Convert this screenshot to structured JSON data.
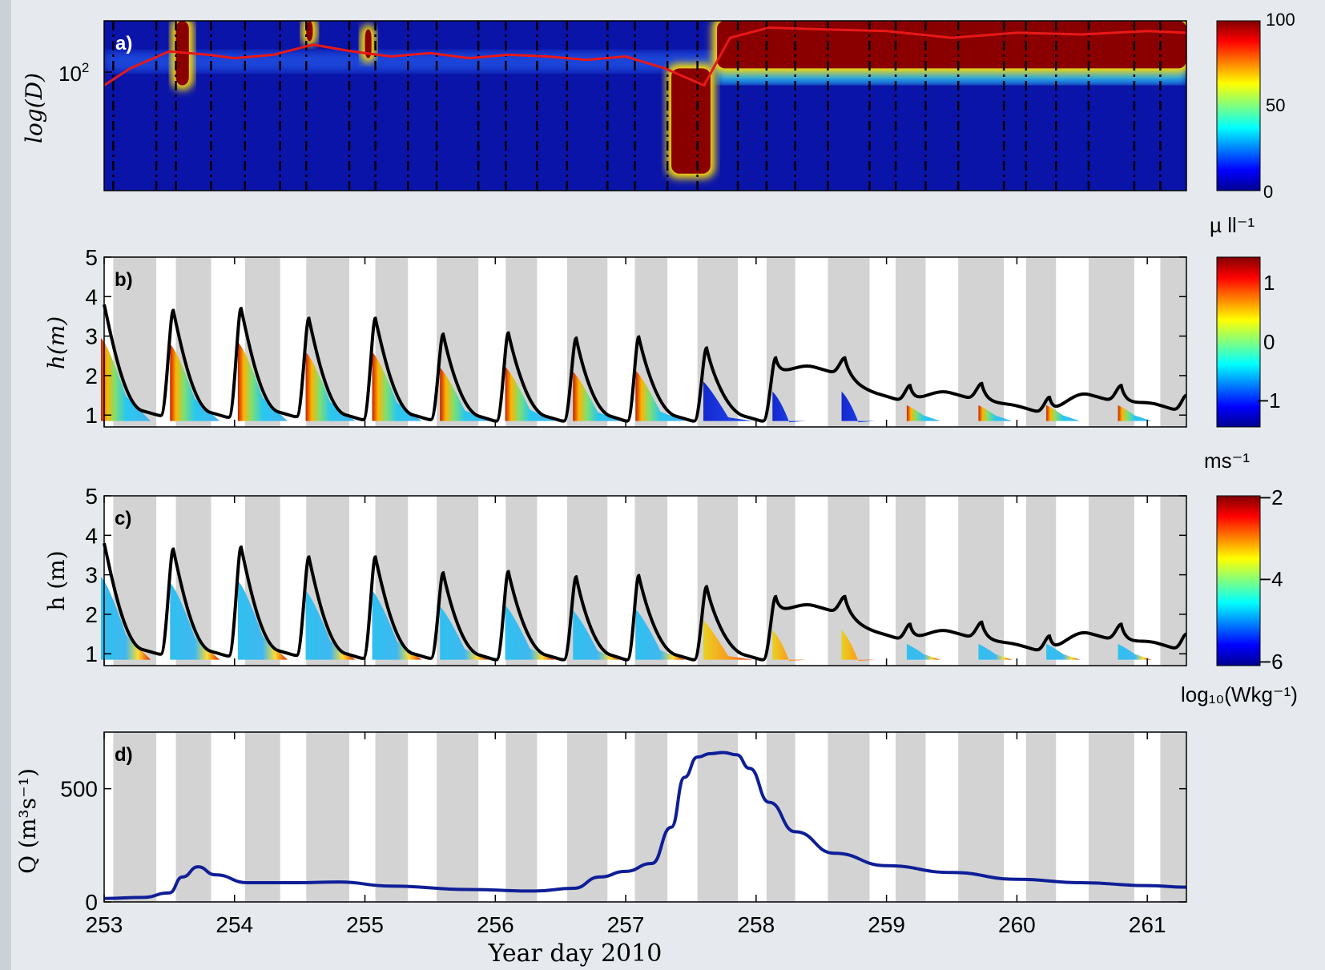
{
  "chart_data": [
    {
      "panel": "a)",
      "type": "heatmap",
      "ylabel": "log(D)",
      "ytick_labels": [
        "10^2"
      ],
      "ylim_note": "log scale",
      "colorbar": {
        "ticks": [
          "0",
          "50",
          "100"
        ],
        "min": 0,
        "max": 100,
        "unit": "µ ll⁻¹",
        "colormap": "jet"
      },
      "blocks": [
        {
          "t0": 253.55,
          "t1": 253.65,
          "y0": 1.0,
          "y1": 0.62,
          "level": 100
        },
        {
          "t0": 254.55,
          "t1": 254.6,
          "y0": 1.0,
          "y1": 0.88,
          "level": 100
        },
        {
          "t0": 255.0,
          "t1": 255.05,
          "y0": 0.95,
          "y1": 0.78,
          "level": 100
        },
        {
          "t0": 257.35,
          "t1": 257.65,
          "y0": 0.72,
          "y1": 0.1,
          "level": 100
        },
        {
          "t0": 257.7,
          "t1": 261.3,
          "y0": 1.0,
          "y1": 0.72,
          "level": 100
        }
      ],
      "red_line": {
        "x": [
          253.0,
          253.2,
          253.5,
          253.8,
          254.0,
          254.3,
          254.6,
          254.9,
          255.2,
          255.5,
          255.8,
          256.1,
          256.4,
          256.7,
          257.0,
          257.3,
          257.6,
          257.8,
          258.1,
          258.5,
          259.0,
          259.5,
          260.0,
          260.5,
          261.0,
          261.3
        ],
        "y": [
          0.62,
          0.72,
          0.82,
          0.8,
          0.78,
          0.8,
          0.86,
          0.82,
          0.79,
          0.81,
          0.78,
          0.8,
          0.79,
          0.77,
          0.79,
          0.72,
          0.62,
          0.9,
          0.96,
          0.95,
          0.94,
          0.9,
          0.93,
          0.92,
          0.94,
          0.93
        ]
      }
    },
    {
      "panel": "b)",
      "type": "line",
      "ylabel": "h(m)",
      "ylim": [
        0.7,
        5
      ],
      "yticks": [
        1,
        2,
        3,
        4,
        5
      ],
      "colorbar": {
        "ticks": [
          "−1",
          "0",
          "1"
        ],
        "min": -1.5,
        "max": 1.5,
        "unit": "ms⁻¹",
        "colormap": "jet"
      }
    },
    {
      "panel": "c)",
      "type": "line",
      "ylabel": "h (m)",
      "ylim": [
        0.7,
        5
      ],
      "yticks": [
        1,
        2,
        3,
        4,
        5
      ],
      "colorbar": {
        "ticks": [
          "−6",
          "−4",
          "−2"
        ],
        "min": -6,
        "max": -2,
        "unit": "log₁₀(Wkg⁻¹)",
        "colormap": "jet"
      }
    },
    {
      "panel": "d)",
      "type": "line",
      "ylabel": "Q (m³s⁻¹)",
      "ylim": [
        0,
        750
      ],
      "yticks": [
        0,
        500
      ],
      "series": [
        {
          "color": "#0f1e96",
          "x": [
            253.0,
            253.3,
            253.5,
            253.6,
            253.72,
            253.85,
            254.1,
            254.5,
            254.8,
            255.2,
            255.8,
            256.3,
            256.6,
            256.8,
            257.0,
            257.2,
            257.35,
            257.45,
            257.55,
            257.65,
            257.75,
            257.85,
            257.95,
            258.1,
            258.3,
            258.6,
            259.0,
            259.5,
            260.0,
            260.5,
            261.0,
            261.3
          ],
          "y": [
            15,
            20,
            40,
            110,
            155,
            120,
            85,
            85,
            88,
            70,
            55,
            48,
            60,
            110,
            135,
            170,
            330,
            550,
            640,
            655,
            660,
            650,
            590,
            440,
            310,
            215,
            160,
            130,
            100,
            85,
            72,
            65
          ]
        }
      ]
    }
  ],
  "shared_x": {
    "label": "Year day 2010",
    "xlim": [
      253,
      261.3
    ],
    "ticks": [
      253,
      254,
      255,
      256,
      257,
      258,
      259,
      260,
      261
    ],
    "dark_periods": [
      [
        253.0,
        253.07
      ],
      [
        253.4,
        253.55
      ],
      [
        253.82,
        254.08
      ],
      [
        254.35,
        254.55
      ],
      [
        254.88,
        255.08
      ],
      [
        255.33,
        255.55
      ],
      [
        255.87,
        256.08
      ],
      [
        256.32,
        256.55
      ],
      [
        256.86,
        257.07
      ],
      [
        257.32,
        257.55
      ],
      [
        257.86,
        258.08
      ],
      [
        258.3,
        258.55
      ],
      [
        258.87,
        259.07
      ],
      [
        259.3,
        259.55
      ],
      [
        259.9,
        260.07
      ],
      [
        260.3,
        260.55
      ],
      [
        260.9,
        261.1
      ]
    ],
    "flood_peaks_h": [
      {
        "t": 253.0,
        "h": 3.8
      },
      {
        "t": 253.53,
        "h": 3.65
      },
      {
        "t": 254.05,
        "h": 3.7
      },
      {
        "t": 254.57,
        "h": 3.45
      },
      {
        "t": 255.08,
        "h": 3.45
      },
      {
        "t": 255.6,
        "h": 3.05
      },
      {
        "t": 256.1,
        "h": 3.08
      },
      {
        "t": 256.62,
        "h": 2.95
      },
      {
        "t": 257.1,
        "h": 2.98
      },
      {
        "t": 257.62,
        "h": 2.7
      },
      {
        "t": 258.15,
        "h": 2.45
      },
      {
        "t": 258.68,
        "h": 2.45
      },
      {
        "t": 259.18,
        "h": 1.75
      },
      {
        "t": 259.73,
        "h": 1.8
      },
      {
        "t": 260.25,
        "h": 1.45
      },
      {
        "t": 260.8,
        "h": 1.75
      },
      {
        "t": 261.3,
        "h": 1.5
      }
    ]
  }
}
